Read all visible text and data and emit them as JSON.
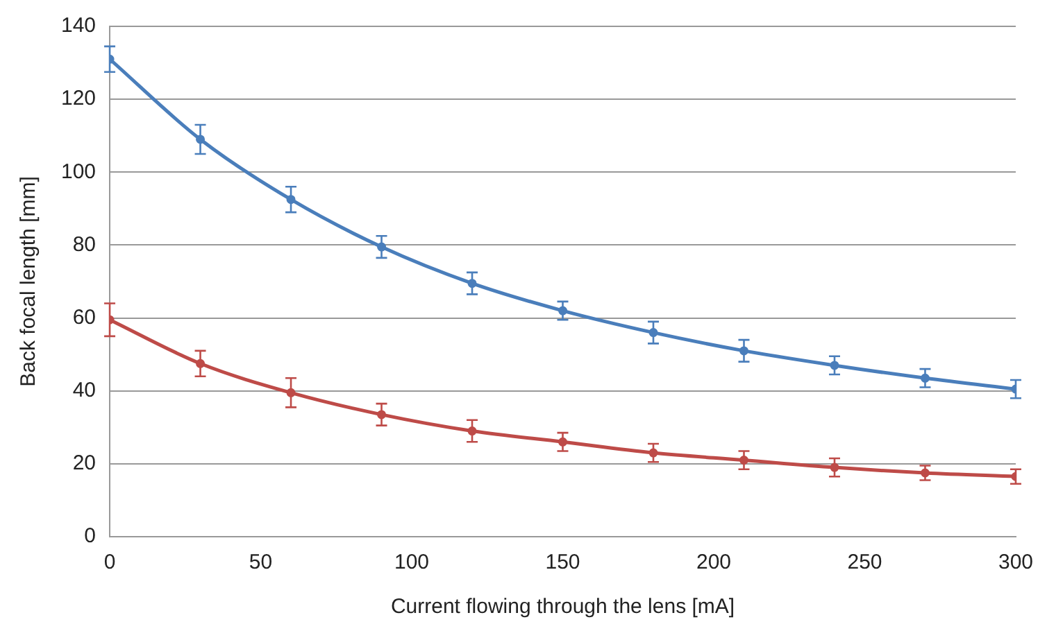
{
  "chart_data": {
    "type": "line",
    "xlabel": "Current flowing through the lens [mA]",
    "ylabel": "Back focal length [mm]",
    "x": [
      0,
      30,
      60,
      90,
      120,
      150,
      180,
      210,
      240,
      270,
      300
    ],
    "series": [
      {
        "color": "#4a7ebb",
        "values": [
          131,
          109,
          92.5,
          79.5,
          69.5,
          62,
          56,
          51,
          47,
          43.5,
          40.5
        ],
        "errors": [
          3.5,
          4,
          3.5,
          3,
          3,
          2.5,
          3,
          3,
          2.5,
          2.5,
          2.5
        ]
      },
      {
        "color": "#be4b48",
        "values": [
          59.5,
          47.5,
          39.5,
          33.5,
          29,
          26,
          23,
          21,
          19,
          17.5,
          16.5
        ],
        "errors": [
          4.5,
          3.5,
          4,
          3,
          3,
          2.5,
          2.5,
          2.5,
          2.5,
          2,
          2
        ]
      }
    ],
    "xlim": [
      0,
      300
    ],
    "xticks": [
      0,
      50,
      100,
      150,
      200,
      250,
      300
    ],
    "ylim": [
      0,
      140
    ],
    "yticks": [
      0,
      20,
      40,
      60,
      80,
      100,
      120,
      140
    ],
    "grid": "y",
    "legend": false,
    "marker": "circle",
    "line_style": "solid"
  }
}
